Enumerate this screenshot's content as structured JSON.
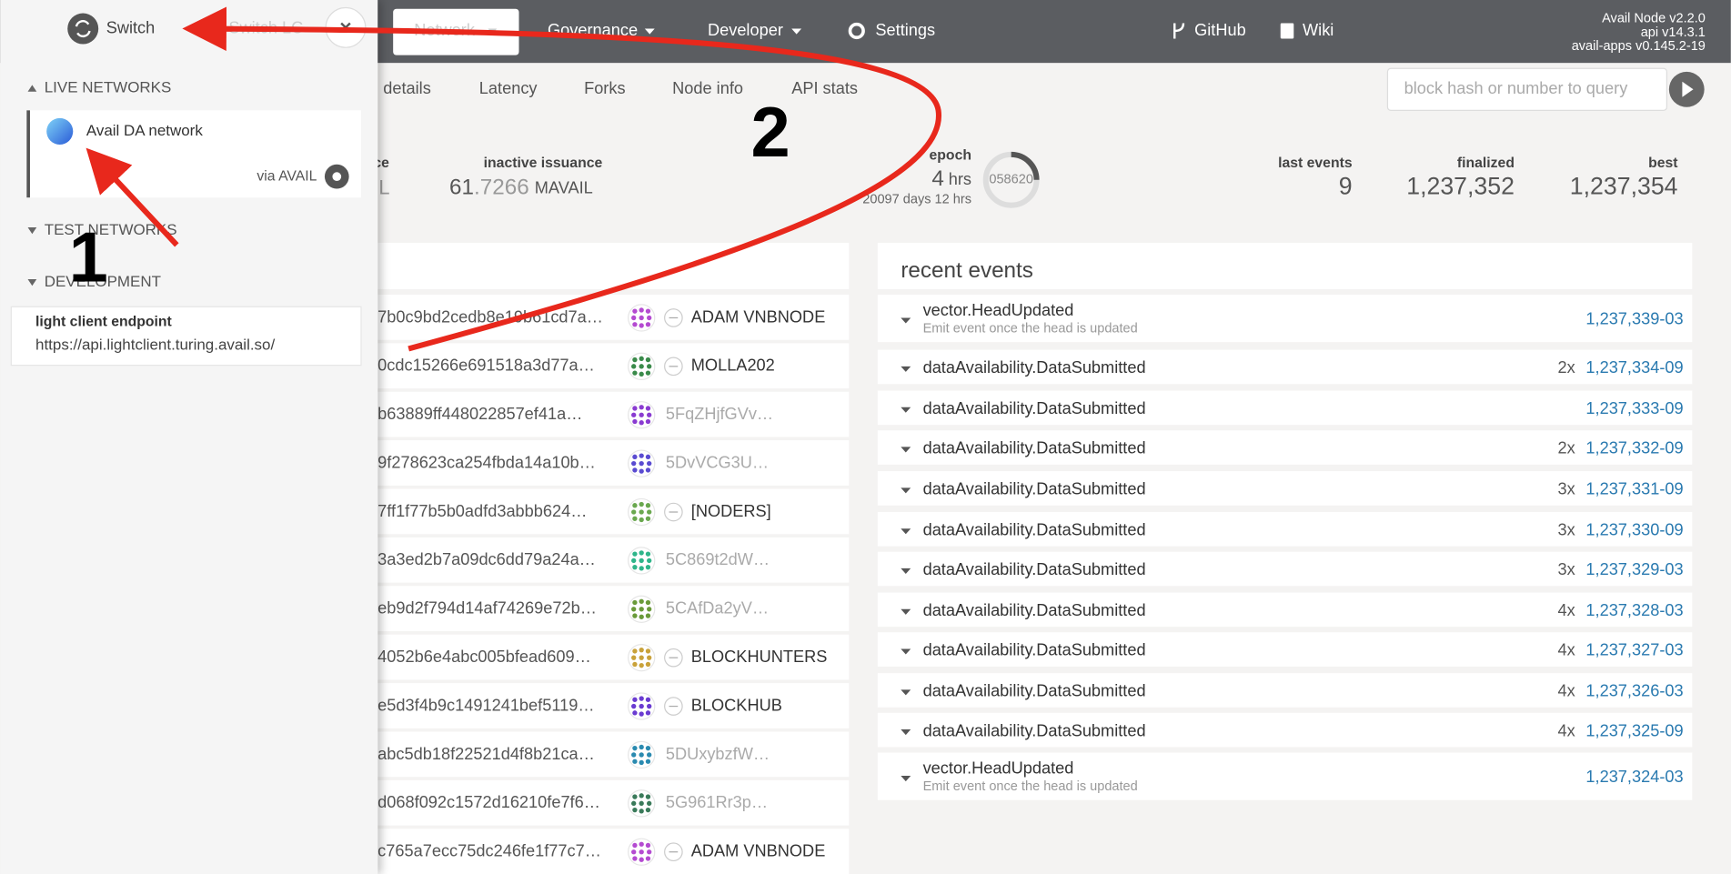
{
  "sidebar": {
    "switch": "Switch",
    "switch_lc": "Switch LC",
    "live_networks": "LIVE NETWORKS",
    "network": {
      "name": "Avail DA network",
      "via": "via AVAIL"
    },
    "test_networks": "TEST NETWORKS",
    "development": "DEVELOPMENT",
    "endpoint": {
      "label": "light client endpoint",
      "url": "https://api.lightclient.turing.avail.so/"
    }
  },
  "nav": {
    "items": [
      "Network",
      "Governance",
      "Developer",
      "Settings",
      "GitHub",
      "Wiki"
    ],
    "version": [
      "Avail Node v2.2.0",
      "api v14.3.1",
      "avail-apps v0.145.2-19"
    ]
  },
  "tabs": {
    "items": [
      "details",
      "Latency",
      "Forks",
      "Node info",
      "API stats"
    ],
    "search_placeholder": "block hash or number to query"
  },
  "summary": {
    "partial_label": "ce",
    "partial_value": "IL",
    "inactive_issuance": {
      "label": "inactive issuance",
      "whole": "61",
      "fraction": ".7266",
      "unit": "MAVAIL"
    },
    "epoch": {
      "label": "epoch",
      "value": "4",
      "unit": "hrs",
      "remaining": "20097 days 12 hrs",
      "progress": "058620"
    },
    "last_events": {
      "label": "last events",
      "value": "9"
    },
    "finalized": {
      "label": "finalized",
      "value": "1,237,352"
    },
    "best": {
      "label": "best",
      "value": "1,237,354"
    }
  },
  "blocks": [
    {
      "hash": "7b0c9bd2cedb8e19b61cd7a…",
      "author": "ADAM VNBNODE",
      "identity": true
    },
    {
      "hash": "0cdc15266e691518a3d77a…",
      "author": "MOLLA202",
      "identity": true
    },
    {
      "hash": "b63889ff448022857ef41a…",
      "author": "5FqZHjfGVv…",
      "identity": false
    },
    {
      "hash": "9f278623ca254fbda14a10b…",
      "author": "5DvVCG3U…",
      "identity": false
    },
    {
      "hash": "7ff1f77b5b0adfd3abbb624…",
      "author": "[NODERS]",
      "identity": true
    },
    {
      "hash": "3a3ed2b7a09dc6dd79a24a…",
      "author": "5C869t2dW…",
      "identity": false
    },
    {
      "hash": "eb9d2f794d14af74269e72b…",
      "author": "5CAfDa2yV…",
      "identity": false
    },
    {
      "hash": "4052b6e4abc005bfead609…",
      "author": "BLOCKHUNTERS",
      "identity": true
    },
    {
      "hash": "e5d3f4b9c1491241bef5119…",
      "author": "BLOCKHUB",
      "identity": true
    },
    {
      "hash": "abc5db18f22521d4f8b21ca…",
      "author": "5DUxybzfW…",
      "identity": false
    },
    {
      "hash": "d068f092c1572d16210fe7f6…",
      "author": "5G961Rr3p…",
      "identity": false
    },
    {
      "hash": "c765a7ecc75dc246fe1f77c7…",
      "author": "ADAM VNBNODE",
      "identity": true
    }
  ],
  "events": {
    "title": "recent events",
    "rows": [
      {
        "name": "vector.HeadUpdated",
        "description": "Emit event once the head is updated",
        "block": "1,237,339-03"
      },
      {
        "name": "dataAvailability.DataSubmitted",
        "count": "2x",
        "block": "1,237,334-09"
      },
      {
        "name": "dataAvailability.DataSubmitted",
        "block": "1,237,333-09"
      },
      {
        "name": "dataAvailability.DataSubmitted",
        "count": "2x",
        "block": "1,237,332-09"
      },
      {
        "name": "dataAvailability.DataSubmitted",
        "count": "3x",
        "block": "1,237,331-09"
      },
      {
        "name": "dataAvailability.DataSubmitted",
        "count": "3x",
        "block": "1,237,330-09"
      },
      {
        "name": "dataAvailability.DataSubmitted",
        "count": "3x",
        "block": "1,237,329-03"
      },
      {
        "name": "dataAvailability.DataSubmitted",
        "count": "4x",
        "block": "1,237,328-03"
      },
      {
        "name": "dataAvailability.DataSubmitted",
        "count": "4x",
        "block": "1,237,327-03"
      },
      {
        "name": "dataAvailability.DataSubmitted",
        "count": "4x",
        "block": "1,237,326-03"
      },
      {
        "name": "dataAvailability.DataSubmitted",
        "count": "4x",
        "block": "1,237,325-09"
      },
      {
        "name": "vector.HeadUpdated",
        "description": "Emit event once the head is updated",
        "block": "1,237,324-03"
      }
    ]
  },
  "annotations": [
    "1",
    "2"
  ]
}
